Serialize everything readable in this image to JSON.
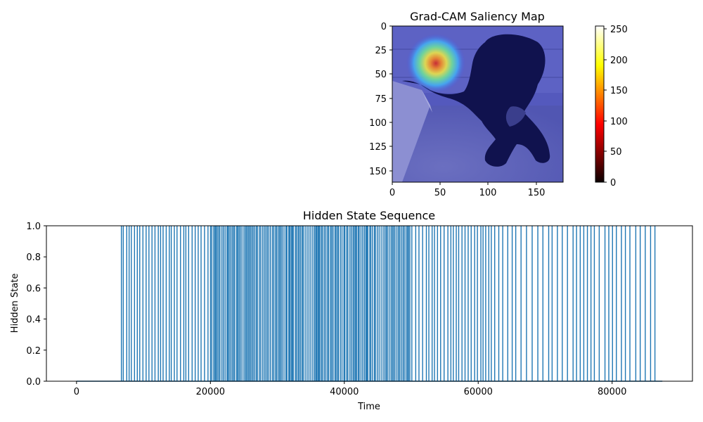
{
  "chart_data": [
    {
      "type": "heatmap",
      "title": "Grad-CAM Saliency Map",
      "image_description_hidden": "",
      "xlim": [
        0,
        178
      ],
      "ylim": [
        162,
        0
      ],
      "xticks": [
        0,
        50,
        100,
        150
      ],
      "yticks": [
        0,
        25,
        50,
        75,
        100,
        125,
        150
      ],
      "colorbar": {
        "colormap": "hot",
        "range": [
          0,
          255
        ],
        "ticks": [
          0,
          50,
          100,
          150,
          200,
          250
        ]
      },
      "overlay": {
        "colormap": "jet",
        "peak_x": 45,
        "peak_y": 40
      }
    },
    {
      "type": "line",
      "title": "Hidden State Sequence",
      "xlabel": "Time",
      "ylabel": "Hidden State",
      "xlim": [
        -4500,
        92000
      ],
      "ylim": [
        0.0,
        1.0
      ],
      "xticks": [
        0,
        20000,
        40000,
        60000,
        80000
      ],
      "yticks": [
        0.0,
        0.2,
        0.4,
        0.6,
        0.8,
        1.0
      ],
      "ytick_labels": [
        "0.0",
        "0.2",
        "0.4",
        "0.6",
        "0.8",
        "1.0"
      ],
      "x_range_of_data": [
        0,
        87500
      ],
      "first_spike": 6700,
      "last_spike": 87000,
      "series_color": "#1f77b4"
    }
  ]
}
